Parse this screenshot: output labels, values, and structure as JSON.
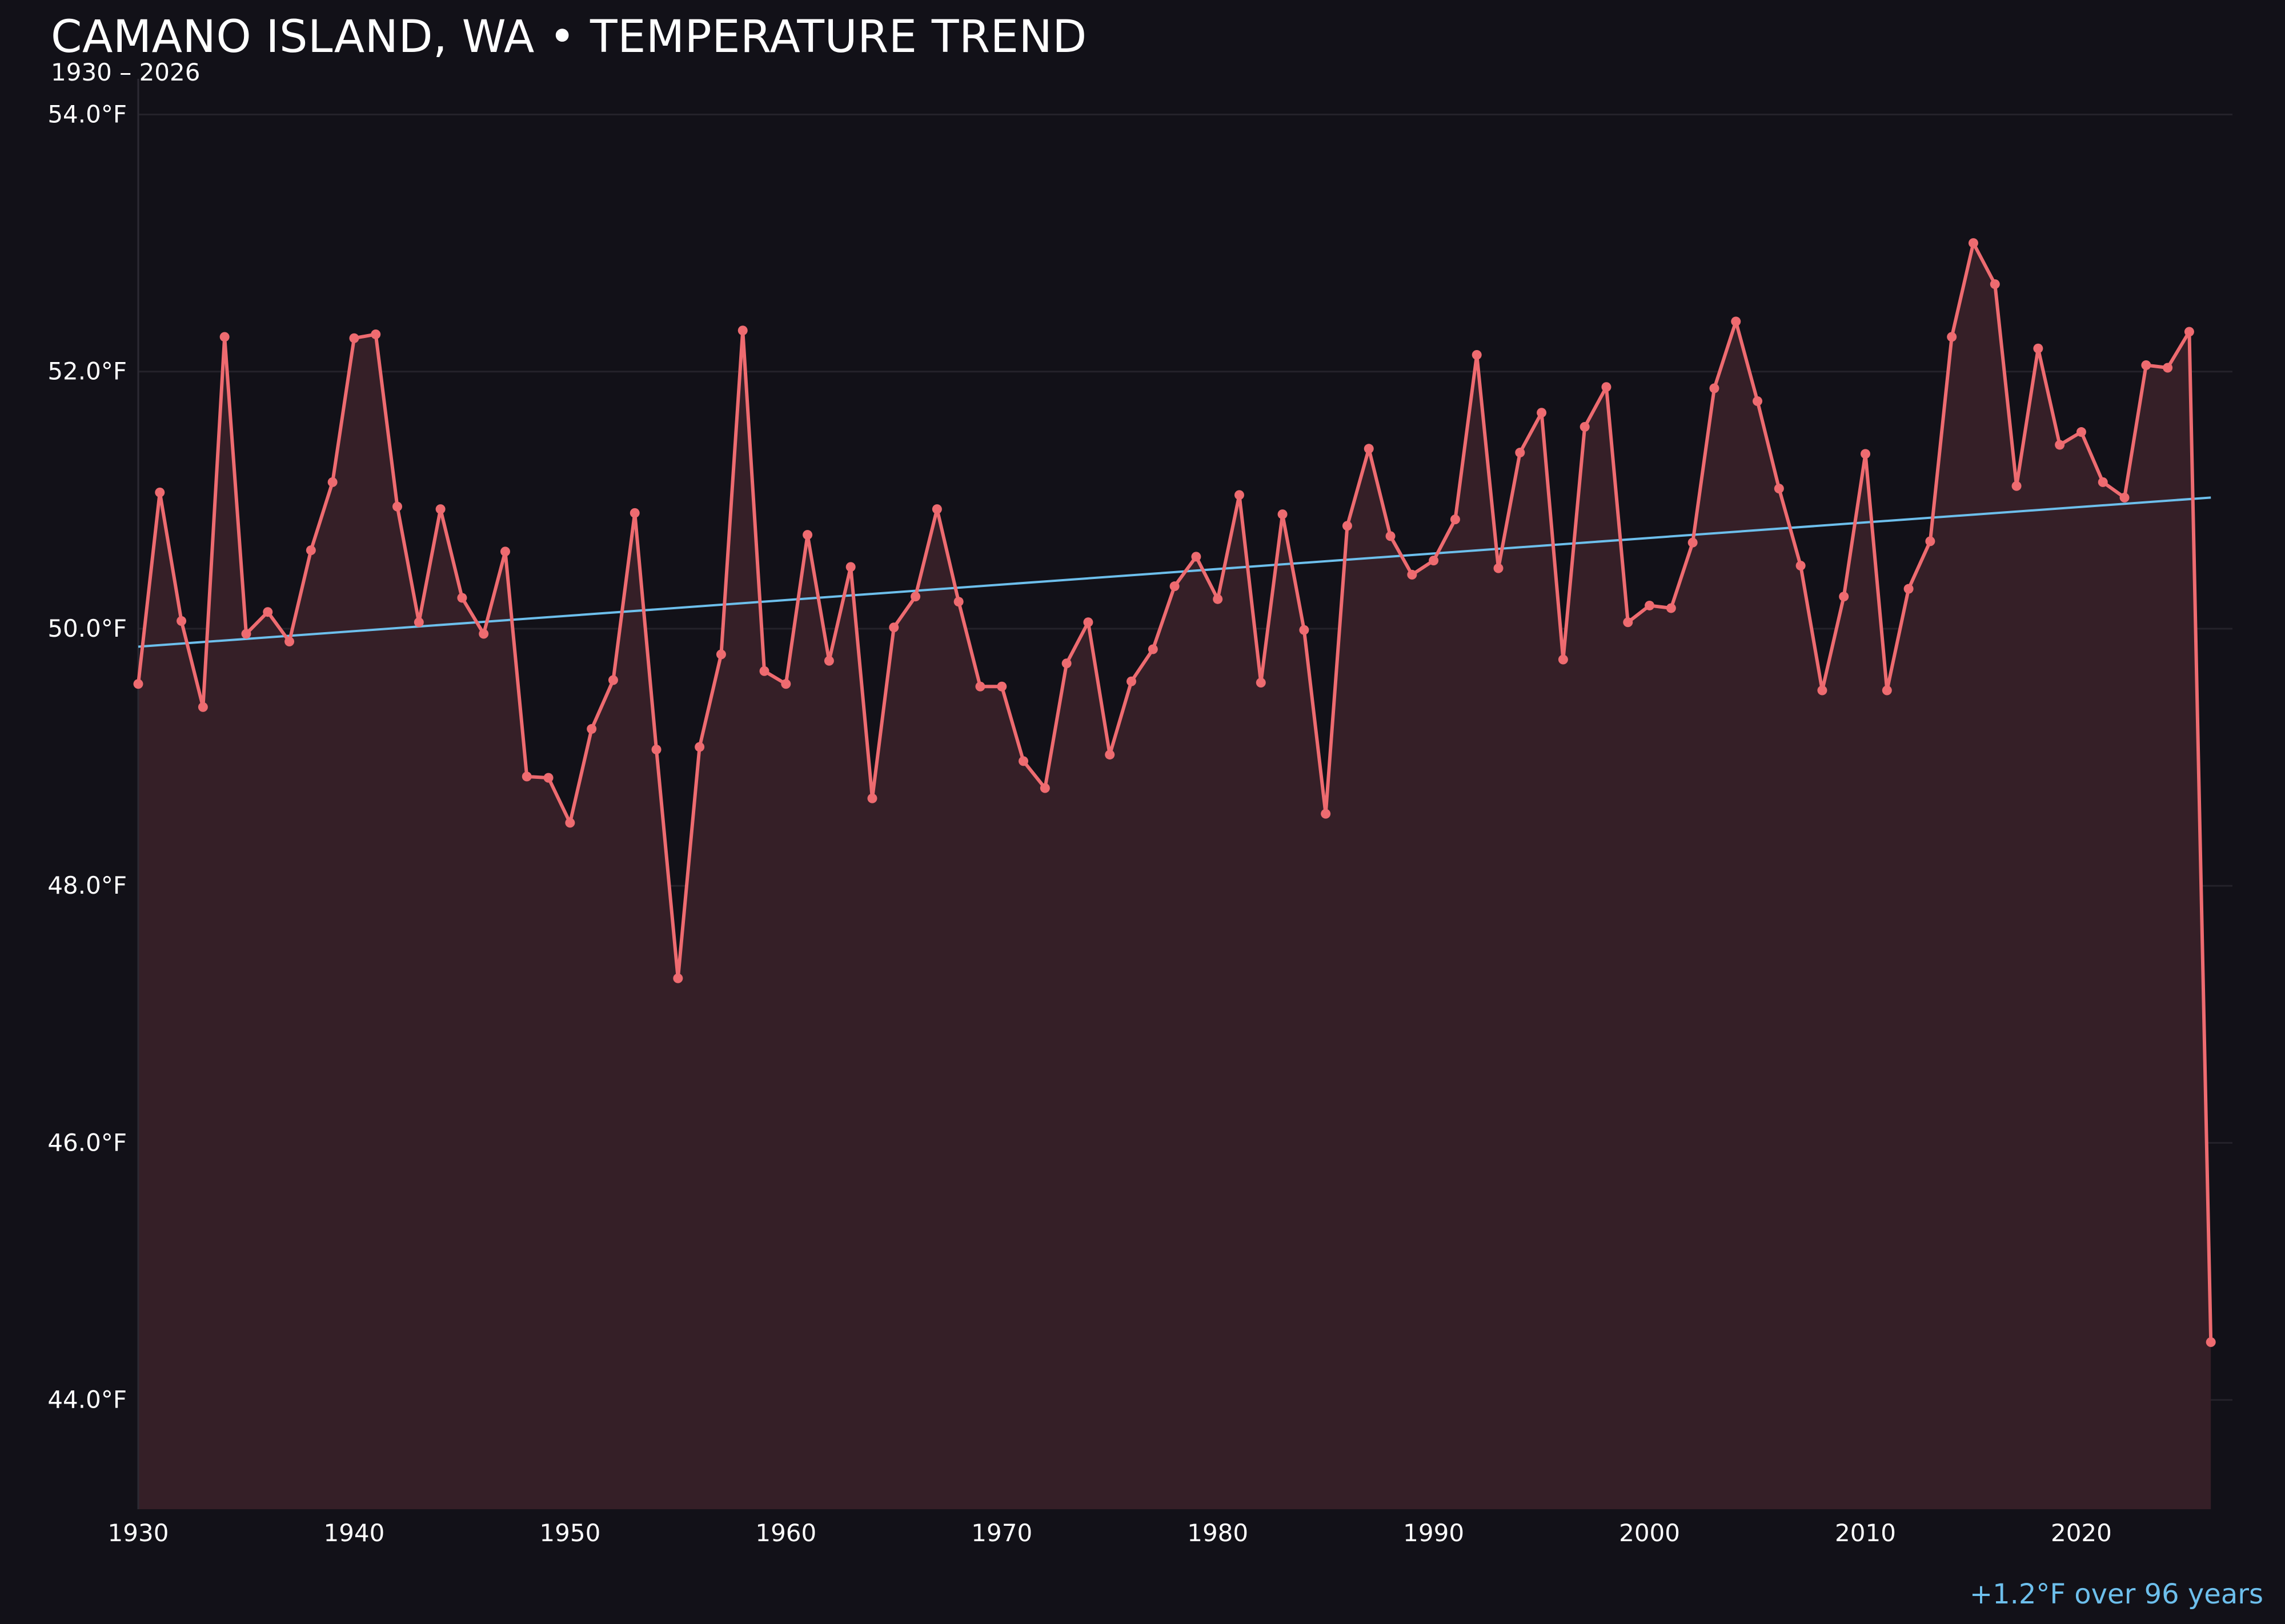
{
  "title": "CAMANO ISLAND, WA • TEMPERATURE TREND",
  "subtitle": "1930 – 2026",
  "annotation": "+1.2°F over 96 years",
  "colors": {
    "background": "#121118",
    "series_line": "#ee6b70",
    "series_fill": "#351f27",
    "trend_line": "#6dbfec",
    "grid": "#24222a",
    "text": "#ffffff"
  },
  "chart_data": {
    "type": "line",
    "title": "CAMANO ISLAND, WA • TEMPERATURE TREND",
    "subtitle": "1930 – 2026",
    "xlabel": "",
    "ylabel": "",
    "xlim": [
      1930,
      2027
    ],
    "ylim": [
      43.15,
      54.1
    ],
    "grid": true,
    "area_fill": true,
    "x_ticks": [
      1930,
      1940,
      1950,
      1960,
      1970,
      1980,
      1990,
      2000,
      2010,
      2020
    ],
    "x_tick_labels": [
      "1930",
      "1940",
      "1950",
      "1960",
      "1970",
      "1980",
      "1990",
      "2000",
      "2010",
      "2020"
    ],
    "y_ticks": [
      44,
      46,
      48,
      50,
      52,
      54
    ],
    "y_tick_labels": [
      "44.0°F",
      "46.0°F",
      "48.0°F",
      "50.0°F",
      "52.0°F",
      "54.0°F"
    ],
    "series": [
      {
        "x": [
          1930,
          1931,
          1932,
          1933,
          1934,
          1935,
          1936,
          1937,
          1938,
          1939,
          1940,
          1941,
          1942,
          1943,
          1944,
          1945,
          1946,
          1947,
          1948,
          1949,
          1950,
          1951,
          1952,
          1953,
          1954,
          1955,
          1956,
          1957,
          1958,
          1959,
          1960,
          1961,
          1962,
          1963,
          1964,
          1965,
          1966,
          1967,
          1968,
          1969,
          1970,
          1971,
          1972,
          1973,
          1974,
          1975,
          1976,
          1977,
          1978,
          1979,
          1980,
          1981,
          1982,
          1983,
          1984,
          1985,
          1986,
          1987,
          1988,
          1989,
          1990,
          1991,
          1992,
          1993,
          1994,
          1995,
          1996,
          1997,
          1998,
          1999,
          2000,
          2001,
          2002,
          2003,
          2004,
          2005,
          2006,
          2007,
          2008,
          2009,
          2010,
          2011,
          2012,
          2013,
          2014,
          2015,
          2016,
          2017,
          2018,
          2019,
          2020,
          2021,
          2022,
          2023,
          2024,
          2025,
          2026
        ],
        "values": [
          49.57,
          51.06,
          50.06,
          49.39,
          52.27,
          49.96,
          50.13,
          49.9,
          50.61,
          51.14,
          52.26,
          52.29,
          50.95,
          50.05,
          50.93,
          50.24,
          49.96,
          50.6,
          48.85,
          48.84,
          48.49,
          49.22,
          49.6,
          50.9,
          49.06,
          47.28,
          49.08,
          49.8,
          52.32,
          49.67,
          49.57,
          50.73,
          49.75,
          50.48,
          48.68,
          50.01,
          50.25,
          50.93,
          50.21,
          49.55,
          49.55,
          48.97,
          48.76,
          49.73,
          50.05,
          49.02,
          49.59,
          49.84,
          50.33,
          50.56,
          50.23,
          51.04,
          49.58,
          50.89,
          49.99,
          48.56,
          50.8,
          51.4,
          50.72,
          50.42,
          50.53,
          50.85,
          52.13,
          50.47,
          51.37,
          51.68,
          49.76,
          51.57,
          51.88,
          50.05,
          50.18,
          50.16,
          50.67,
          51.87,
          52.39,
          51.77,
          51.09,
          50.49,
          49.52,
          50.25,
          51.36,
          49.52,
          50.31,
          50.68,
          52.27,
          53.0,
          52.68,
          51.11,
          52.18,
          51.43,
          51.53,
          51.14,
          51.02,
          52.05,
          52.03,
          52.31,
          44.45
        ]
      }
    ],
    "trend": {
      "x": [
        1930,
        2026
      ],
      "values": [
        49.86,
        51.02
      ]
    }
  }
}
